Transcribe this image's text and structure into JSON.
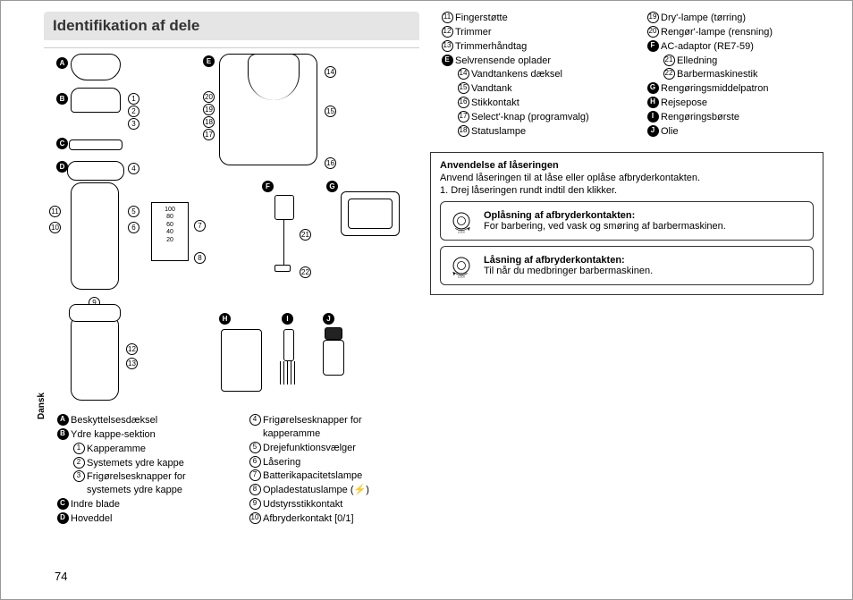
{
  "title": "Identifikation af dele",
  "language_tab": "Dansk",
  "page_number": "74",
  "diagram": {
    "letter_markers": [
      "A",
      "B",
      "C",
      "D",
      "E",
      "F",
      "G",
      "H",
      "I",
      "J"
    ],
    "display_values": [
      "100",
      "80",
      "60",
      "40",
      "20"
    ]
  },
  "parts_left": [
    {
      "marker_type": "letter",
      "marker": "A",
      "text": "Beskyttelsesdæksel"
    },
    {
      "marker_type": "letter",
      "marker": "B",
      "text": "Ydre kappe-sektion"
    },
    {
      "marker_type": "num",
      "marker": "1",
      "text": "Kapperamme",
      "indent": true
    },
    {
      "marker_type": "num",
      "marker": "2",
      "text": "Systemets ydre kappe",
      "indent": true
    },
    {
      "marker_type": "num",
      "marker": "3",
      "text": "Frigørelsesknapper for systemets ydre kappe",
      "indent": true
    },
    {
      "marker_type": "letter",
      "marker": "C",
      "text": "Indre blade"
    },
    {
      "marker_type": "letter",
      "marker": "D",
      "text": "Hoveddel"
    }
  ],
  "parts_mid": [
    {
      "marker_type": "num",
      "marker": "4",
      "text": "Frigørelsesknapper for kapperamme"
    },
    {
      "marker_type": "num",
      "marker": "5",
      "text": "Drejefunktionsvælger"
    },
    {
      "marker_type": "num",
      "marker": "6",
      "text": "Låsering"
    },
    {
      "marker_type": "num",
      "marker": "7",
      "text": "Batterikapacitetslampe"
    },
    {
      "marker_type": "num",
      "marker": "8",
      "text": "Opladestatuslampe (⚡)"
    },
    {
      "marker_type": "num",
      "marker": "9",
      "text": "Udstyrsstikkontakt"
    },
    {
      "marker_type": "num",
      "marker": "10",
      "text": "Afbryderkontakt [0/1]"
    }
  ],
  "parts_right_a": [
    {
      "marker_type": "num",
      "marker": "11",
      "text": "Fingerstøtte"
    },
    {
      "marker_type": "num",
      "marker": "12",
      "text": "Trimmer"
    },
    {
      "marker_type": "num",
      "marker": "13",
      "text": "Trimmerhåndtag"
    },
    {
      "marker_type": "letter",
      "marker": "E",
      "text": "Selvrensende oplader"
    },
    {
      "marker_type": "num",
      "marker": "14",
      "text": "Vandtankens dæksel",
      "indent": true
    },
    {
      "marker_type": "num",
      "marker": "15",
      "text": "Vandtank",
      "indent": true
    },
    {
      "marker_type": "num",
      "marker": "16",
      "text": "Stikkontakt",
      "indent": true
    },
    {
      "marker_type": "num",
      "marker": "17",
      "text": "Select'-knap (programvalg)",
      "indent": true
    },
    {
      "marker_type": "num",
      "marker": "18",
      "text": "Statuslampe",
      "indent": true
    }
  ],
  "parts_right_b": [
    {
      "marker_type": "num",
      "marker": "19",
      "text": "Dry'-lampe (tørring)"
    },
    {
      "marker_type": "num",
      "marker": "20",
      "text": "Rengør'-lampe (rensning)"
    },
    {
      "marker_type": "letter",
      "marker": "F",
      "text": "AC-adaptor (RE7-59)"
    },
    {
      "marker_type": "num",
      "marker": "21",
      "text": "Elledning",
      "indent": true
    },
    {
      "marker_type": "num",
      "marker": "22",
      "text": "Barbermaskinestik",
      "indent": true
    },
    {
      "marker_type": "letter",
      "marker": "G",
      "text": "Rengøringsmiddelpatron"
    },
    {
      "marker_type": "letter",
      "marker": "H",
      "text": "Rejsepose"
    },
    {
      "marker_type": "letter",
      "marker": "I",
      "text": "Rengøringsbørste"
    },
    {
      "marker_type": "letter",
      "marker": "J",
      "text": "Olie"
    }
  ],
  "usage": {
    "title": "Anvendelse af låseringen",
    "subtitle": "Anvend låseringen til at låse eller oplåse afbryderkontakten.",
    "step": "1. Drej låseringen rundt indtil den klikker.",
    "unlock": {
      "title": "Oplåsning af afbryderkontakten:",
      "text": "For barbering, ved vask og smøring af barbermaskinen."
    },
    "lock": {
      "title": "Låsning af afbryderkontakten:",
      "text": "Til når du medbringer barbermaskinen."
    }
  }
}
